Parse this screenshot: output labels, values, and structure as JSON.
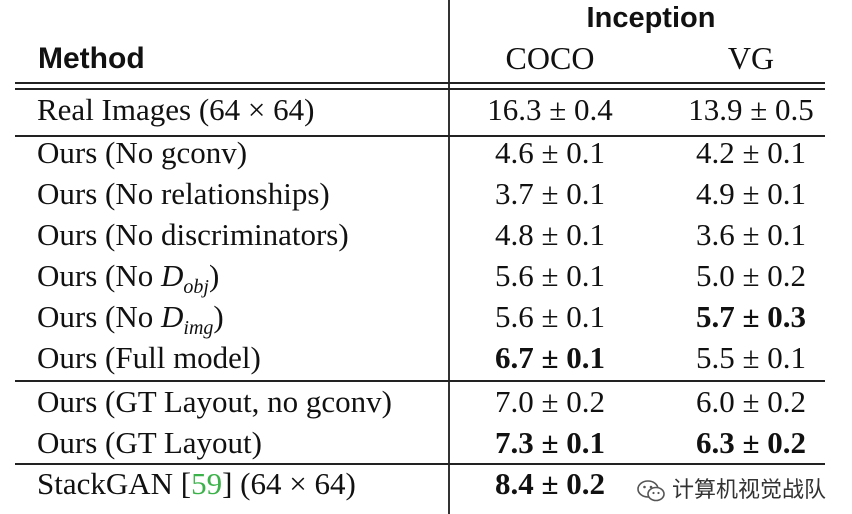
{
  "header": {
    "group": "Inception",
    "method": "Method",
    "col1": "COCO",
    "col2": "VG"
  },
  "rows": [
    {
      "method_pre": "Real Images (64 × 64)",
      "sym": "",
      "sub": "",
      "post": "",
      "coco": "16.3 ± 0.4",
      "vg": "13.9 ± 0.5",
      "coco_bold": false,
      "vg_bold": false
    },
    {
      "method_pre": "Ours (No gconv)",
      "sym": "",
      "sub": "",
      "post": "",
      "coco": "4.6 ± 0.1",
      "vg": "4.2 ± 0.1",
      "coco_bold": false,
      "vg_bold": false
    },
    {
      "method_pre": "Ours (No relationships)",
      "sym": "",
      "sub": "",
      "post": "",
      "coco": "3.7 ± 0.1",
      "vg": "4.9 ± 0.1",
      "coco_bold": false,
      "vg_bold": false
    },
    {
      "method_pre": "Ours (No discriminators)",
      "sym": "",
      "sub": "",
      "post": "",
      "coco": "4.8 ± 0.1",
      "vg": "3.6 ± 0.1",
      "coco_bold": false,
      "vg_bold": false
    },
    {
      "method_pre": "Ours (No ",
      "sym": "D",
      "sub": "obj",
      "post": ")",
      "coco": "5.6 ± 0.1",
      "vg": "5.0 ± 0.2",
      "coco_bold": false,
      "vg_bold": false
    },
    {
      "method_pre": "Ours (No ",
      "sym": "D",
      "sub": "img",
      "post": ")",
      "coco": "5.6 ± 0.1",
      "vg": "5.7 ± 0.3",
      "coco_bold": false,
      "vg_bold": true
    },
    {
      "method_pre": "Ours (Full model)",
      "sym": "",
      "sub": "",
      "post": "",
      "coco": "6.7 ± 0.1",
      "vg": "5.5 ± 0.1",
      "coco_bold": true,
      "vg_bold": false
    },
    {
      "method_pre": "Ours (GT Layout, no gconv)",
      "sym": "",
      "sub": "",
      "post": "",
      "coco": "7.0 ± 0.2",
      "vg": "6.0 ± 0.2",
      "coco_bold": false,
      "vg_bold": false
    },
    {
      "method_pre": "Ours (GT Layout)",
      "sym": "",
      "sub": "",
      "post": "",
      "coco": "7.3 ± 0.1",
      "vg": "6.3 ± 0.2",
      "coco_bold": true,
      "vg_bold": true
    },
    {
      "method_pre": "StackGAN [",
      "cite": "59",
      "sym": "",
      "sub": "",
      "post": "] (64 × 64)",
      "coco": "8.4 ± 0.2",
      "vg": "",
      "coco_bold": true,
      "vg_bold": false
    }
  ],
  "watermark": {
    "text": "计算机视觉战队",
    "icon": "wechat-icon"
  }
}
